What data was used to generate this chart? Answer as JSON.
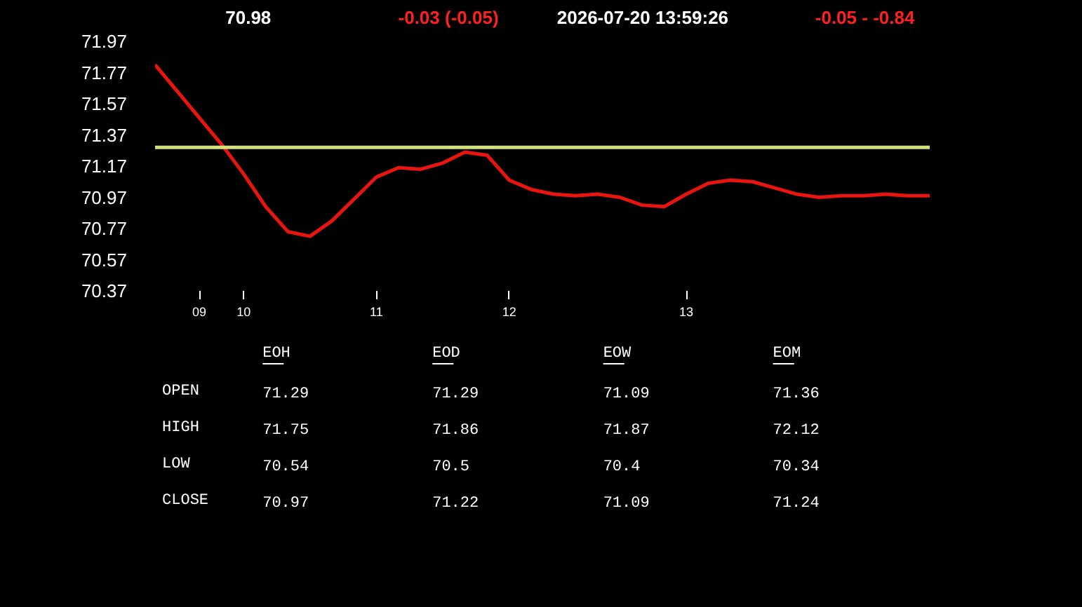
{
  "chart_data": [
    {
      "type": "line",
      "annotations": [
        "70.98",
        "-0.03  (-0.05)",
        "2026-07-20   13:59:26",
        "-0.05  -  -0.84"
      ],
      "categories": [
        null,
        null,
        "09",
        null,
        "10",
        null,
        null,
        null,
        null,
        null,
        "11",
        null,
        null,
        null,
        null,
        null,
        "12",
        null,
        null,
        null,
        null,
        null,
        null,
        null,
        "13",
        null,
        null,
        null,
        null,
        null,
        null,
        null,
        null,
        null,
        null,
        null
      ],
      "series": [
        {
          "color": "#e8140f",
          "values": [
            71.82,
            71.65,
            71.48,
            71.31,
            71.12,
            70.91,
            70.75,
            70.72,
            70.82,
            70.96,
            71.1,
            71.16,
            71.15,
            71.19,
            71.26,
            71.24,
            71.08,
            71.02,
            70.99,
            70.98,
            70.99,
            70.97,
            70.92,
            70.91,
            70.99,
            71.06,
            71.08,
            71.07,
            71.03,
            70.99,
            70.97,
            70.98,
            70.98,
            70.99,
            70.98,
            70.98
          ]
        }
      ],
      "ylim": [
        70.37,
        71.97
      ],
      "yticks": [
        70.37,
        70.57,
        70.77,
        70.97,
        71.17,
        71.37,
        71.57,
        71.77,
        71.97
      ],
      "ref_lines": [
        {
          "axis": "y",
          "value": 71.29,
          "color": "#d4e07a"
        }
      ],
      "grid": false
    },
    {
      "type": "heatmap",
      "data_labels": true,
      "categories": [
        "EOH",
        "EOD",
        "EOW",
        "EOM"
      ],
      "y_categories": [
        "OPEN",
        "HIGH",
        "LOW",
        "CLOSE"
      ],
      "cells": [
        [
          71.29,
          71.29,
          71.09,
          71.36
        ],
        [
          71.75,
          71.86,
          71.87,
          72.12
        ],
        [
          70.54,
          70.5,
          70.4,
          70.34
        ],
        [
          70.97,
          71.22,
          71.09,
          71.24
        ]
      ]
    }
  ]
}
